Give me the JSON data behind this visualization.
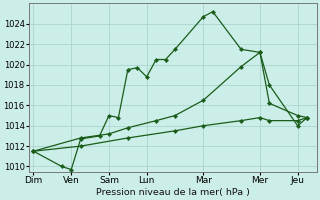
{
  "background_color": "#cceee8",
  "grid_color": "#aad4ce",
  "line_color": "#1a5c1a",
  "xlabel": "Pression niveau de la mer( hPa )",
  "ylim": [
    1009.5,
    1026.0
  ],
  "yticks": [
    1010,
    1012,
    1014,
    1016,
    1018,
    1020,
    1022,
    1024
  ],
  "x_labels": [
    "Dim",
    "Ven",
    "Sam",
    "Lun",
    "Mar",
    "Mer",
    "Jeu"
  ],
  "x_tick_pos": [
    0,
    4,
    8,
    12,
    18,
    24,
    28
  ],
  "xlim": [
    -0.5,
    30
  ],
  "line1_x": [
    0,
    3,
    4,
    5,
    7,
    8,
    9,
    10,
    11,
    12,
    13,
    14,
    15,
    18,
    19,
    22,
    24,
    25,
    28,
    29
  ],
  "line1_y": [
    1011.5,
    1010.0,
    1009.7,
    1012.7,
    1013.0,
    1015.0,
    1014.8,
    1019.5,
    1019.7,
    1018.8,
    1020.5,
    1020.5,
    1021.5,
    1024.7,
    1025.2,
    1021.5,
    1021.2,
    1018.0,
    1014.0,
    1014.8
  ],
  "line2_x": [
    0,
    5,
    8,
    10,
    13,
    15,
    18,
    22,
    24,
    25,
    28,
    29
  ],
  "line2_y": [
    1011.5,
    1012.8,
    1013.2,
    1013.8,
    1014.5,
    1015.0,
    1016.5,
    1019.8,
    1021.2,
    1016.2,
    1015.0,
    1014.8
  ],
  "line3_x": [
    0,
    5,
    10,
    15,
    18,
    22,
    24,
    25,
    28,
    29
  ],
  "line3_y": [
    1011.5,
    1012.0,
    1012.8,
    1013.5,
    1014.0,
    1014.5,
    1014.8,
    1014.5,
    1014.5,
    1014.8
  ]
}
